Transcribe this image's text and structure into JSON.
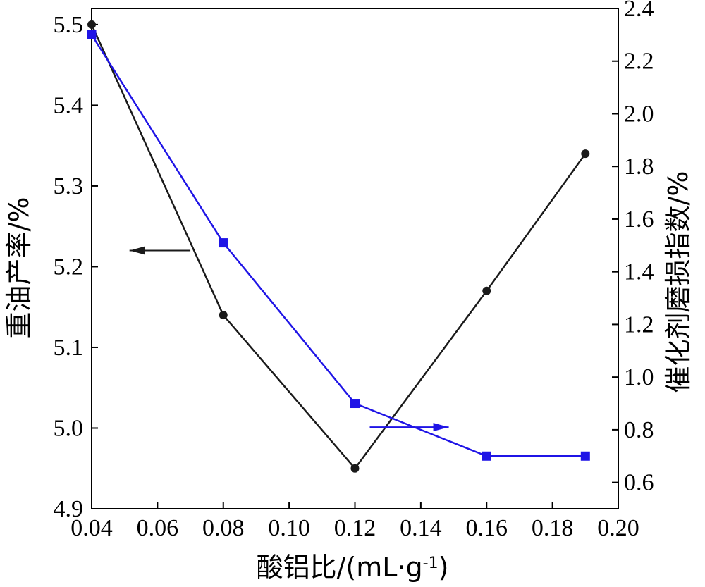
{
  "chart_data": {
    "type": "line",
    "xlabel": "酸铝比/(mL·g",
    "xlabel_sup": "-1",
    "xlabel_end": ")",
    "ylabel_left": "重油产率/%",
    "ylabel_right": "催化剂磨损指数/%",
    "xlim": [
      0.04,
      0.2
    ],
    "xticks": [
      "0.04",
      "0.06",
      "0.08",
      "0.10",
      "0.12",
      "0.14",
      "0.16",
      "0.18",
      "0.20"
    ],
    "ylim_left": [
      4.9,
      5.52
    ],
    "yticks_left": [
      "4.9",
      "5.0",
      "5.1",
      "5.2",
      "5.3",
      "5.4",
      "5.5"
    ],
    "ylim_right": [
      0.5,
      2.4
    ],
    "yticks_right": [
      "0.6",
      "0.8",
      "1.0",
      "1.2",
      "1.4",
      "1.6",
      "1.8",
      "2.0",
      "2.2",
      "2.4"
    ],
    "series": [
      {
        "axis": "left",
        "color": "#1a1a1a",
        "marker": "circle",
        "x": [
          0.04,
          0.08,
          0.12,
          0.16,
          0.19
        ],
        "values": [
          5.5,
          5.14,
          4.95,
          5.17,
          5.34
        ]
      },
      {
        "axis": "right",
        "color": "#1f14e6",
        "marker": "square",
        "x": [
          0.04,
          0.08,
          0.12,
          0.16,
          0.19
        ],
        "values": [
          2.3,
          1.51,
          0.9,
          0.7,
          0.7
        ]
      }
    ],
    "annotations": [
      {
        "type": "arrow",
        "direction": "left",
        "series": 0,
        "color": "#1a1a1a"
      },
      {
        "type": "arrow",
        "direction": "right",
        "series": 1,
        "color": "#1f14e6"
      }
    ]
  }
}
